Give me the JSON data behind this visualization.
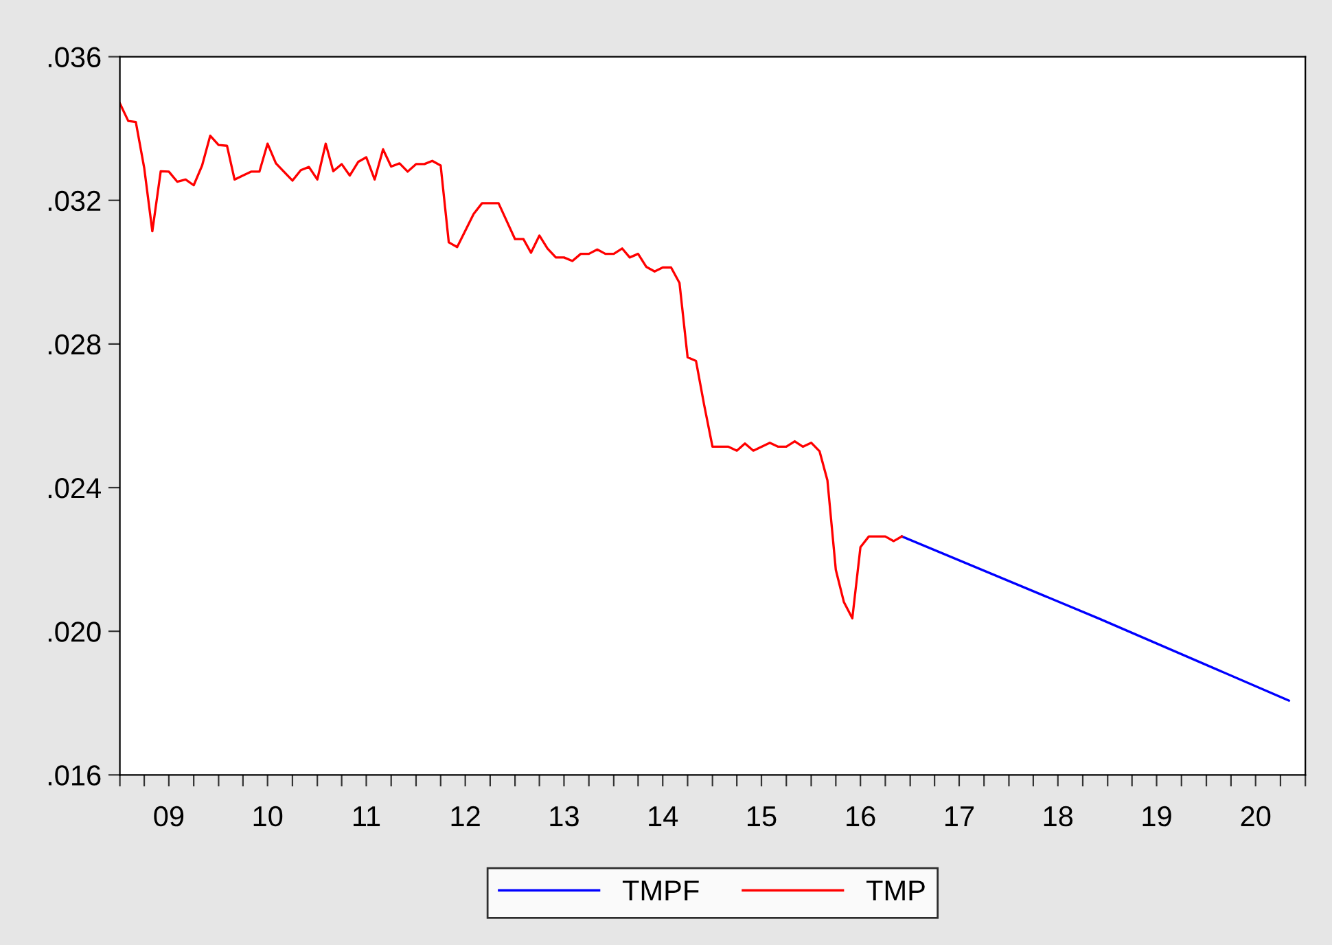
{
  "chart_data": {
    "type": "line",
    "xlim": [
      "2009-01",
      "2021-01"
    ],
    "xticks": [
      {
        "value": "2009-01",
        "label": null
      },
      {
        "value": "2009-04",
        "label": null
      },
      {
        "value": "2009-07",
        "label": "09"
      },
      {
        "value": "2009-10",
        "label": null
      },
      {
        "value": "2010-01",
        "label": null
      },
      {
        "value": "2010-04",
        "label": null
      },
      {
        "value": "2010-07",
        "label": "10"
      },
      {
        "value": "2010-10",
        "label": null
      },
      {
        "value": "2011-01",
        "label": null
      },
      {
        "value": "2011-04",
        "label": null
      },
      {
        "value": "2011-07",
        "label": "11"
      },
      {
        "value": "2011-10",
        "label": null
      },
      {
        "value": "2012-01",
        "label": null
      },
      {
        "value": "2012-04",
        "label": null
      },
      {
        "value": "2012-07",
        "label": "12"
      },
      {
        "value": "2012-10",
        "label": null
      },
      {
        "value": "2013-01",
        "label": null
      },
      {
        "value": "2013-04",
        "label": null
      },
      {
        "value": "2013-07",
        "label": "13"
      },
      {
        "value": "2013-10",
        "label": null
      },
      {
        "value": "2014-01",
        "label": null
      },
      {
        "value": "2014-04",
        "label": null
      },
      {
        "value": "2014-07",
        "label": "14"
      },
      {
        "value": "2014-10",
        "label": null
      },
      {
        "value": "2015-01",
        "label": null
      },
      {
        "value": "2015-04",
        "label": null
      },
      {
        "value": "2015-07",
        "label": "15"
      },
      {
        "value": "2015-10",
        "label": null
      },
      {
        "value": "2016-01",
        "label": null
      },
      {
        "value": "2016-04",
        "label": null
      },
      {
        "value": "2016-07",
        "label": "16"
      },
      {
        "value": "2016-10",
        "label": null
      },
      {
        "value": "2017-01",
        "label": null
      },
      {
        "value": "2017-04",
        "label": null
      },
      {
        "value": "2017-07",
        "label": "17"
      },
      {
        "value": "2017-10",
        "label": null
      },
      {
        "value": "2018-01",
        "label": null
      },
      {
        "value": "2018-04",
        "label": null
      },
      {
        "value": "2018-07",
        "label": "18"
      },
      {
        "value": "2018-10",
        "label": null
      },
      {
        "value": "2019-01",
        "label": null
      },
      {
        "value": "2019-04",
        "label": null
      },
      {
        "value": "2019-07",
        "label": "19"
      },
      {
        "value": "2019-10",
        "label": null
      },
      {
        "value": "2020-01",
        "label": null
      },
      {
        "value": "2020-04",
        "label": null
      },
      {
        "value": "2020-07",
        "label": "20"
      },
      {
        "value": "2020-10",
        "label": null
      },
      {
        "value": "2021-01",
        "label": null
      }
    ],
    "ylim": [
      0.016,
      0.036
    ],
    "yticks": [
      {
        "value": 0.016,
        "label": ".016"
      },
      {
        "value": 0.02,
        "label": ".020"
      },
      {
        "value": 0.024,
        "label": ".024"
      },
      {
        "value": 0.028,
        "label": ".028"
      },
      {
        "value": 0.032,
        "label": ".032"
      },
      {
        "value": 0.036,
        "label": ".036"
      }
    ],
    "grid": false,
    "legend": "bottom",
    "series": [
      {
        "name": "TMPF",
        "color": "#0000ff",
        "x": [
          "2016-12",
          "2018-12",
          "2020-11"
        ],
        "values": [
          0.02264,
          0.02035,
          0.01807
        ]
      },
      {
        "name": "TMP",
        "color": "#ff0000",
        "x": [
          "2009-01",
          "2009-02",
          "2009-03",
          "2009-04",
          "2009-05",
          "2009-06",
          "2009-07",
          "2009-08",
          "2009-09",
          "2009-10",
          "2009-11",
          "2009-12",
          "2010-01",
          "2010-02",
          "2010-03",
          "2010-05",
          "2010-06",
          "2010-07",
          "2010-08",
          "2010-10",
          "2010-11",
          "2010-12",
          "2011-01",
          "2011-02",
          "2011-03",
          "2011-04",
          "2011-05",
          "2011-06",
          "2011-07",
          "2011-08",
          "2011-09",
          "2011-10",
          "2011-11",
          "2011-12",
          "2012-01",
          "2012-02",
          "2012-03",
          "2012-04",
          "2012-05",
          "2012-06",
          "2012-08",
          "2012-09",
          "2012-11",
          "2013-01",
          "2013-02",
          "2013-03",
          "2013-04",
          "2013-05",
          "2013-06",
          "2013-07",
          "2013-08",
          "2013-09",
          "2013-10",
          "2013-11",
          "2013-12",
          "2014-01",
          "2014-02",
          "2014-03",
          "2014-04",
          "2014-05",
          "2014-06",
          "2014-07",
          "2014-08",
          "2014-09",
          "2014-10",
          "2014-11",
          "2014-12",
          "2015-01",
          "2015-03",
          "2015-04",
          "2015-05",
          "2015-06",
          "2015-08",
          "2015-09",
          "2015-10",
          "2015-11",
          "2015-12",
          "2016-01",
          "2016-02",
          "2016-03",
          "2016-04",
          "2016-05",
          "2016-06",
          "2016-07",
          "2016-08",
          "2016-10",
          "2016-11",
          "2016-12"
        ],
        "values": [
          0.0347,
          0.03421,
          0.03418,
          0.0329,
          0.03114,
          0.03281,
          0.0328,
          0.03252,
          0.03258,
          0.03242,
          0.03297,
          0.0338,
          0.03354,
          0.03352,
          0.03258,
          0.0328,
          0.0328,
          0.03358,
          0.03303,
          0.03255,
          0.03284,
          0.03293,
          0.03258,
          0.03358,
          0.03281,
          0.03301,
          0.03269,
          0.03307,
          0.0332,
          0.03258,
          0.03342,
          0.03294,
          0.03303,
          0.0328,
          0.03301,
          0.03301,
          0.0331,
          0.03297,
          0.03083,
          0.0307,
          0.03162,
          0.03192,
          0.03192,
          0.03092,
          0.03092,
          0.03054,
          0.03102,
          0.03066,
          0.03041,
          0.03041,
          0.03031,
          0.03051,
          0.03051,
          0.03063,
          0.03051,
          0.03051,
          0.03066,
          0.03041,
          0.03051,
          0.03015,
          0.03002,
          0.03013,
          0.03013,
          0.0297,
          0.02763,
          0.02753,
          0.02631,
          0.02514,
          0.02514,
          0.02503,
          0.02523,
          0.02503,
          0.02525,
          0.02514,
          0.02514,
          0.02529,
          0.02514,
          0.02525,
          0.02501,
          0.0242,
          0.02171,
          0.02081,
          0.02036,
          0.02234,
          0.02264,
          0.02264,
          0.02251,
          0.02264
        ]
      }
    ]
  }
}
